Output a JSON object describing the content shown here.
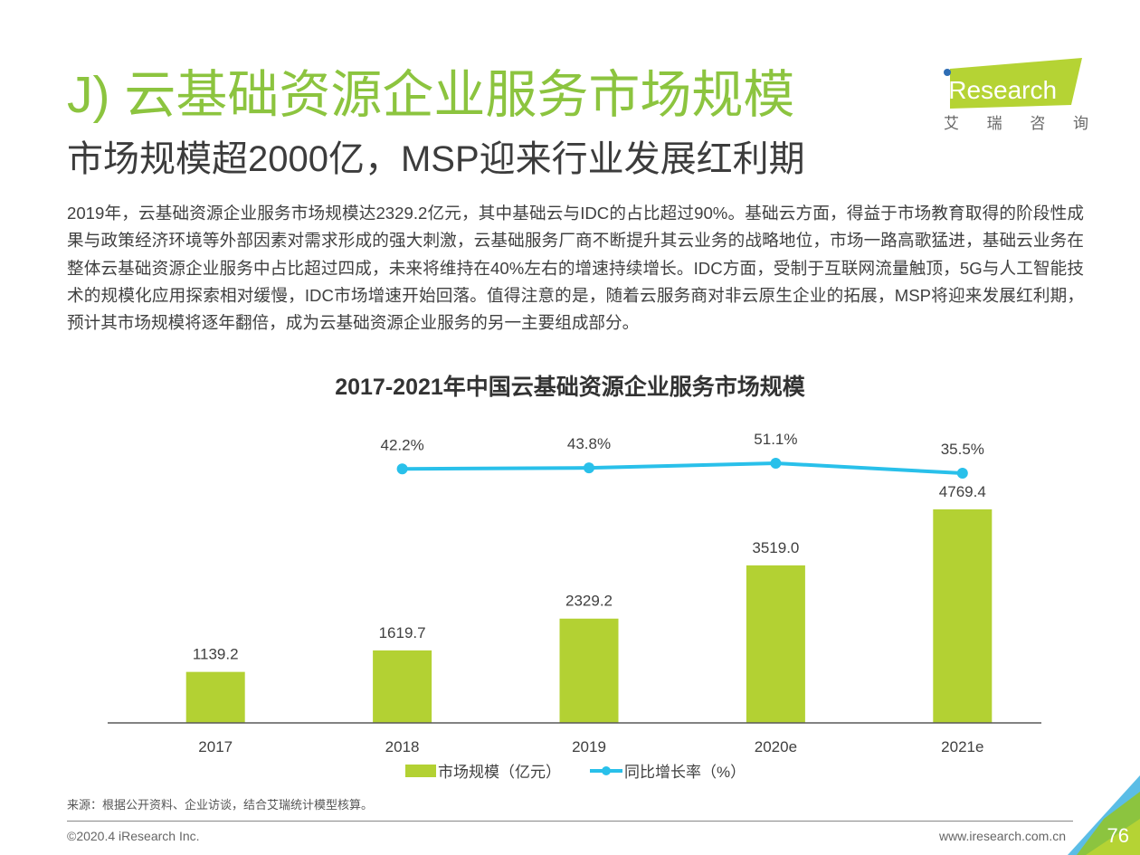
{
  "header": {
    "title": "J) 云基础资源企业服务市场规模",
    "subtitle": "市场规模超2000亿，MSP迎来行业发展红利期"
  },
  "logo": {
    "brand": "iResearch",
    "brand_cn": [
      "艾",
      "瑞",
      "咨",
      "询"
    ],
    "brand_color": "#b5d334",
    "dot_color": "#2e6db4"
  },
  "body_text": "2019年，云基础资源企业服务市场规模达2329.2亿元，其中基础云与IDC的占比超过90%。基础云方面，得益于市场教育取得的阶段性成果与政策经济环境等外部因素对需求形成的强大刺激，云基础服务厂商不断提升其云业务的战略地位，市场一路高歌猛进，基础云业务在整体云基础资源企业服务中占比超过四成，未来将维持在40%左右的增速持续增长。IDC方面，受制于互联网流量触顶，5G与人工智能技术的规模化应用探索相对缓慢，IDC市场增速开始回落。值得注意的是，随着云服务商对非云原生企业的拓展，MSP将迎来发展红利期，预计其市场规模将逐年翻倍，成为云基础资源企业服务的另一主要组成部分。",
  "chart_data": {
    "type": "bar",
    "title": "2017-2021年中国云基础资源企业服务市场规模",
    "categories": [
      "2017",
      "2018",
      "2019",
      "2020e",
      "2021e"
    ],
    "series": [
      {
        "name": "市场规模（亿元）",
        "type": "bar",
        "color": "#b3d133",
        "values": [
          1139.2,
          1619.7,
          2329.2,
          3519.0,
          4769.4
        ],
        "labels": [
          "1139.2",
          "1619.7",
          "2329.2",
          "3519.0",
          "4769.4"
        ]
      },
      {
        "name": "同比增长率（%）",
        "type": "line",
        "color": "#29c0ea",
        "values": [
          null,
          42.2,
          43.8,
          51.1,
          35.5
        ],
        "labels": [
          "",
          "42.2%",
          "43.8%",
          "51.1%",
          "35.5%"
        ]
      }
    ],
    "xlabel": "",
    "ylabel": "",
    "ylim": [
      0,
      5000
    ],
    "grid": false,
    "legend": "bottom"
  },
  "footer": {
    "source": "来源：根据公开资料、企业访谈，结合艾瑞统计模型核算。",
    "copyright": "©2020.4 iResearch Inc.",
    "website": "www.iresearch.com.cn",
    "page_number": "76"
  }
}
